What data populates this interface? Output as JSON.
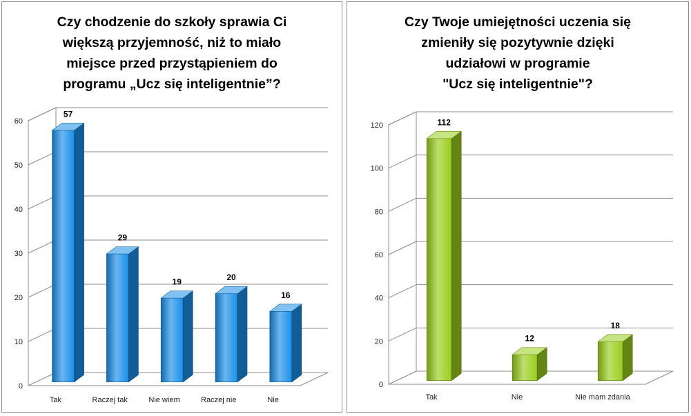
{
  "chart_data": [
    {
      "type": "bar",
      "title": "Czy chodzenie do szkoły sprawia Ci\nwiększą przyjemność, niż to miało\nmiejsce przed przystąpieniem do\nprogramu „Ucz się inteligentnie”?",
      "categories": [
        "Tak",
        "Raczej tak",
        "Nie wiem",
        "Raczej nie",
        "Nie"
      ],
      "values": [
        57,
        29,
        19,
        20,
        16
      ],
      "ylim": [
        0,
        60
      ],
      "yticks": [
        0,
        10,
        20,
        30,
        40,
        50,
        60
      ],
      "grid": true,
      "color": "#1a8fe8",
      "style": "3d-column"
    },
    {
      "type": "bar",
      "title": "Czy Twoje umiejętności uczenia się\nzmieniły się pozytywnie dzięki\nudziałowi w programie\n\"Ucz się inteligentnie\"?",
      "categories": [
        "Tak",
        "Nie",
        "Nie mam  zdania"
      ],
      "values": [
        112,
        12,
        18
      ],
      "ylim": [
        0,
        120
      ],
      "yticks": [
        0,
        20,
        40,
        60,
        80,
        100,
        120
      ],
      "grid": true,
      "color": "#9acd1c",
      "style": "3d-column"
    }
  ]
}
